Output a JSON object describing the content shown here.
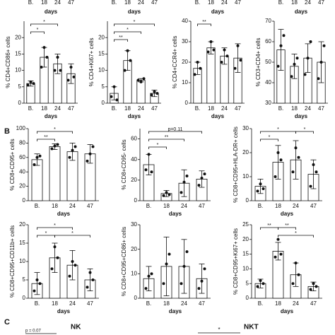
{
  "panel_labels": [
    "B",
    "C"
  ],
  "cropped_row": [
    {
      "categories": [
        "B.",
        "18",
        "24",
        "47"
      ],
      "xlabel": "days"
    },
    {
      "categories": [
        "B.",
        "18",
        "24",
        "47"
      ],
      "xlabel": "days"
    },
    {
      "categories": [
        "B.",
        "18",
        "24",
        "47"
      ],
      "xlabel": "days"
    },
    {
      "categories": [
        "B.",
        "18",
        "24",
        "47"
      ],
      "xlabel": "days"
    }
  ],
  "row_c": {
    "titles": [
      "NK",
      "NKT"
    ],
    "annotations": [
      "p = 0.07",
      "*"
    ]
  },
  "chart_data": [
    {
      "type": "bar",
      "ylabel": "% CD4+CD86+ cells",
      "xlabel": "days",
      "categories": [
        "B.",
        "18",
        "24",
        "47"
      ],
      "values": [
        6,
        14,
        12,
        9
      ],
      "errors": [
        0.8,
        3,
        3,
        3
      ],
      "points": [
        [
          5.5,
          6.5,
          6
        ],
        [
          11,
          17,
          14
        ],
        [
          10,
          14,
          10
        ],
        [
          7,
          11,
          8
        ]
      ],
      "ylim": [
        0,
        25
      ],
      "yticks": [
        0,
        5,
        10,
        15,
        20
      ],
      "significance": [
        {
          "from": 0,
          "to": 2,
          "label": "*"
        },
        {
          "from": 0,
          "to": 1,
          "label": "*"
        }
      ]
    },
    {
      "type": "bar",
      "ylabel": "% CD4+Ki67+ cells",
      "xlabel": "days",
      "categories": [
        "B.",
        "18",
        "24",
        "47"
      ],
      "values": [
        3,
        13,
        7,
        3
      ],
      "errors": [
        2,
        3,
        0.5,
        1
      ],
      "points": [
        [
          2,
          5,
          1
        ],
        [
          10,
          16,
          13
        ],
        [
          7,
          6.5,
          7.5
        ],
        [
          2.5,
          3.5,
          3
        ]
      ],
      "ylim": [
        0,
        25
      ],
      "yticks": [
        0,
        5,
        10,
        15,
        20
      ],
      "significance": [
        {
          "from": 0,
          "to": 3,
          "label": "*"
        },
        {
          "from": 0,
          "to": 2,
          "label": "*"
        },
        {
          "from": 0,
          "to": 1,
          "label": "**"
        }
      ]
    },
    {
      "type": "bar",
      "ylabel": "% CD4+CCR4+ cells",
      "xlabel": "days",
      "categories": [
        "B.",
        "18",
        "24",
        "47"
      ],
      "values": [
        17,
        27,
        23,
        22
      ],
      "errors": [
        3,
        3,
        4,
        7
      ],
      "points": [
        [
          14,
          20,
          17
        ],
        [
          25,
          30,
          26
        ],
        [
          20,
          26,
          23
        ],
        [
          17,
          28,
          21
        ]
      ],
      "ylim": [
        0,
        40
      ],
      "yticks": [
        0,
        10,
        20,
        30,
        40
      ],
      "significance": [
        {
          "from": 0,
          "to": 1,
          "label": "**"
        }
      ]
    },
    {
      "type": "bar",
      "ylabel": "% CD3+CD4+ cells",
      "xlabel": "days",
      "categories": [
        "B.",
        "18",
        "24",
        "47"
      ],
      "values": [
        56,
        48,
        52,
        50
      ],
      "errors": [
        10,
        6,
        7,
        10
      ],
      "points": [
        [
          48,
          58,
          63
        ],
        [
          43,
          49,
          52
        ],
        [
          44,
          52,
          60
        ],
        [
          42,
          50,
          58
        ]
      ],
      "ylim": [
        30,
        70
      ],
      "yticks": [
        30,
        40,
        50,
        60,
        70
      ],
      "significance": []
    },
    {
      "type": "bar",
      "ylabel": "% CD8+CD95+ cells",
      "xlabel": "days",
      "categories": [
        "B.",
        "18",
        "24",
        "47"
      ],
      "values": [
        57,
        75,
        68,
        65
      ],
      "errors": [
        8,
        4,
        12,
        13
      ],
      "points": [
        [
          50,
          60,
          62
        ],
        [
          72,
          76,
          78
        ],
        [
          60,
          70,
          75
        ],
        [
          55,
          65,
          75
        ]
      ],
      "ylim": [
        0,
        100
      ],
      "yticks": [
        0,
        20,
        40,
        60,
        80,
        100
      ],
      "significance": [
        {
          "from": 0,
          "to": 2,
          "label": "*"
        },
        {
          "from": 0,
          "to": 1,
          "label": "**"
        }
      ]
    },
    {
      "type": "bar",
      "ylabel": "% CD8+CD95- cells",
      "xlabel": "days",
      "categories": [
        "B.",
        "18",
        "24",
        "47"
      ],
      "values": [
        35,
        7,
        17,
        21
      ],
      "errors": [
        10,
        3,
        13,
        8
      ],
      "points": [
        [
          30,
          45,
          28
        ],
        [
          5,
          8,
          6
        ],
        [
          8,
          18,
          24
        ],
        [
          15,
          22,
          26
        ]
      ],
      "ylim": [
        0,
        70
      ],
      "yticks": [
        0,
        20,
        40,
        60
      ],
      "significance": [
        {
          "from": 0,
          "to": 3,
          "label": "p=0.11"
        },
        {
          "from": 0,
          "to": 2,
          "label": "**"
        },
        {
          "from": 0,
          "to": 1,
          "label": "*"
        }
      ]
    },
    {
      "type": "bar",
      "ylabel": "% CD8+CD95+HLA-DR+ cells",
      "xlabel": "days",
      "categories": [
        "B.",
        "18",
        "24",
        "47"
      ],
      "values": [
        6,
        16,
        17,
        11
      ],
      "errors": [
        3,
        7,
        8,
        6
      ],
      "points": [
        [
          4,
          7,
          5
        ],
        [
          10,
          20,
          17
        ],
        [
          12,
          22,
          18
        ],
        [
          6,
          15,
          12
        ]
      ],
      "ylim": [
        0,
        30
      ],
      "yticks": [
        0,
        10,
        20,
        30
      ],
      "significance": [
        {
          "from": 0,
          "to": 2,
          "label": "*"
        },
        {
          "from": 0,
          "to": 1,
          "label": "*"
        },
        {
          "from": 2,
          "to": 3,
          "label": "*"
        }
      ]
    },
    {
      "type": "bar",
      "ylabel": "% CD8+CD95+CD11b+ cells",
      "xlabel": "days",
      "categories": [
        "B.",
        "18",
        "24",
        "47"
      ],
      "values": [
        4,
        11,
        9,
        5
      ],
      "errors": [
        3,
        4,
        4,
        3
      ],
      "points": [
        [
          2,
          5,
          4
        ],
        [
          8,
          14,
          11
        ],
        [
          6,
          10,
          9
        ],
        [
          3,
          7,
          5
        ]
      ],
      "ylim": [
        0,
        20
      ],
      "yticks": [
        0,
        5,
        10,
        15,
        20
      ],
      "significance": [
        {
          "from": 0,
          "to": 2,
          "label": "*"
        },
        {
          "from": 0,
          "to": 1,
          "label": "*"
        },
        {
          "from": 1,
          "to": 3,
          "label": "*"
        }
      ]
    },
    {
      "type": "bar",
      "ylabel": "% CD8+CD95+CD86+ cells",
      "xlabel": "days",
      "categories": [
        "B.",
        "18",
        "24",
        "47"
      ],
      "values": [
        8,
        13,
        13,
        8
      ],
      "errors": [
        5,
        12,
        11,
        6
      ],
      "points": [
        [
          4,
          9,
          10
        ],
        [
          6,
          14,
          18
        ],
        [
          6,
          13,
          19
        ],
        [
          4,
          7,
          12
        ]
      ],
      "ylim": [
        0,
        30
      ],
      "yticks": [
        0,
        10,
        20,
        30
      ],
      "significance": []
    },
    {
      "type": "bar",
      "ylabel": "% CD8+CD95+Ki67+ cells",
      "xlabel": "days",
      "categories": [
        "B.",
        "18",
        "24",
        "47"
      ],
      "values": [
        5,
        16,
        8,
        4
      ],
      "errors": [
        1.5,
        3,
        4,
        1.5
      ],
      "points": [
        [
          4,
          6,
          5
        ],
        [
          14,
          20,
          15
        ],
        [
          5,
          12,
          8
        ],
        [
          3,
          5,
          4
        ]
      ],
      "ylim": [
        0,
        25
      ],
      "yticks": [
        0,
        5,
        10,
        15,
        20,
        25
      ],
      "significance": [
        {
          "from": 0,
          "to": 1,
          "label": "**"
        },
        {
          "from": 1,
          "to": 2,
          "label": "**"
        },
        {
          "from": 1,
          "to": 3,
          "label": "*"
        }
      ]
    }
  ]
}
